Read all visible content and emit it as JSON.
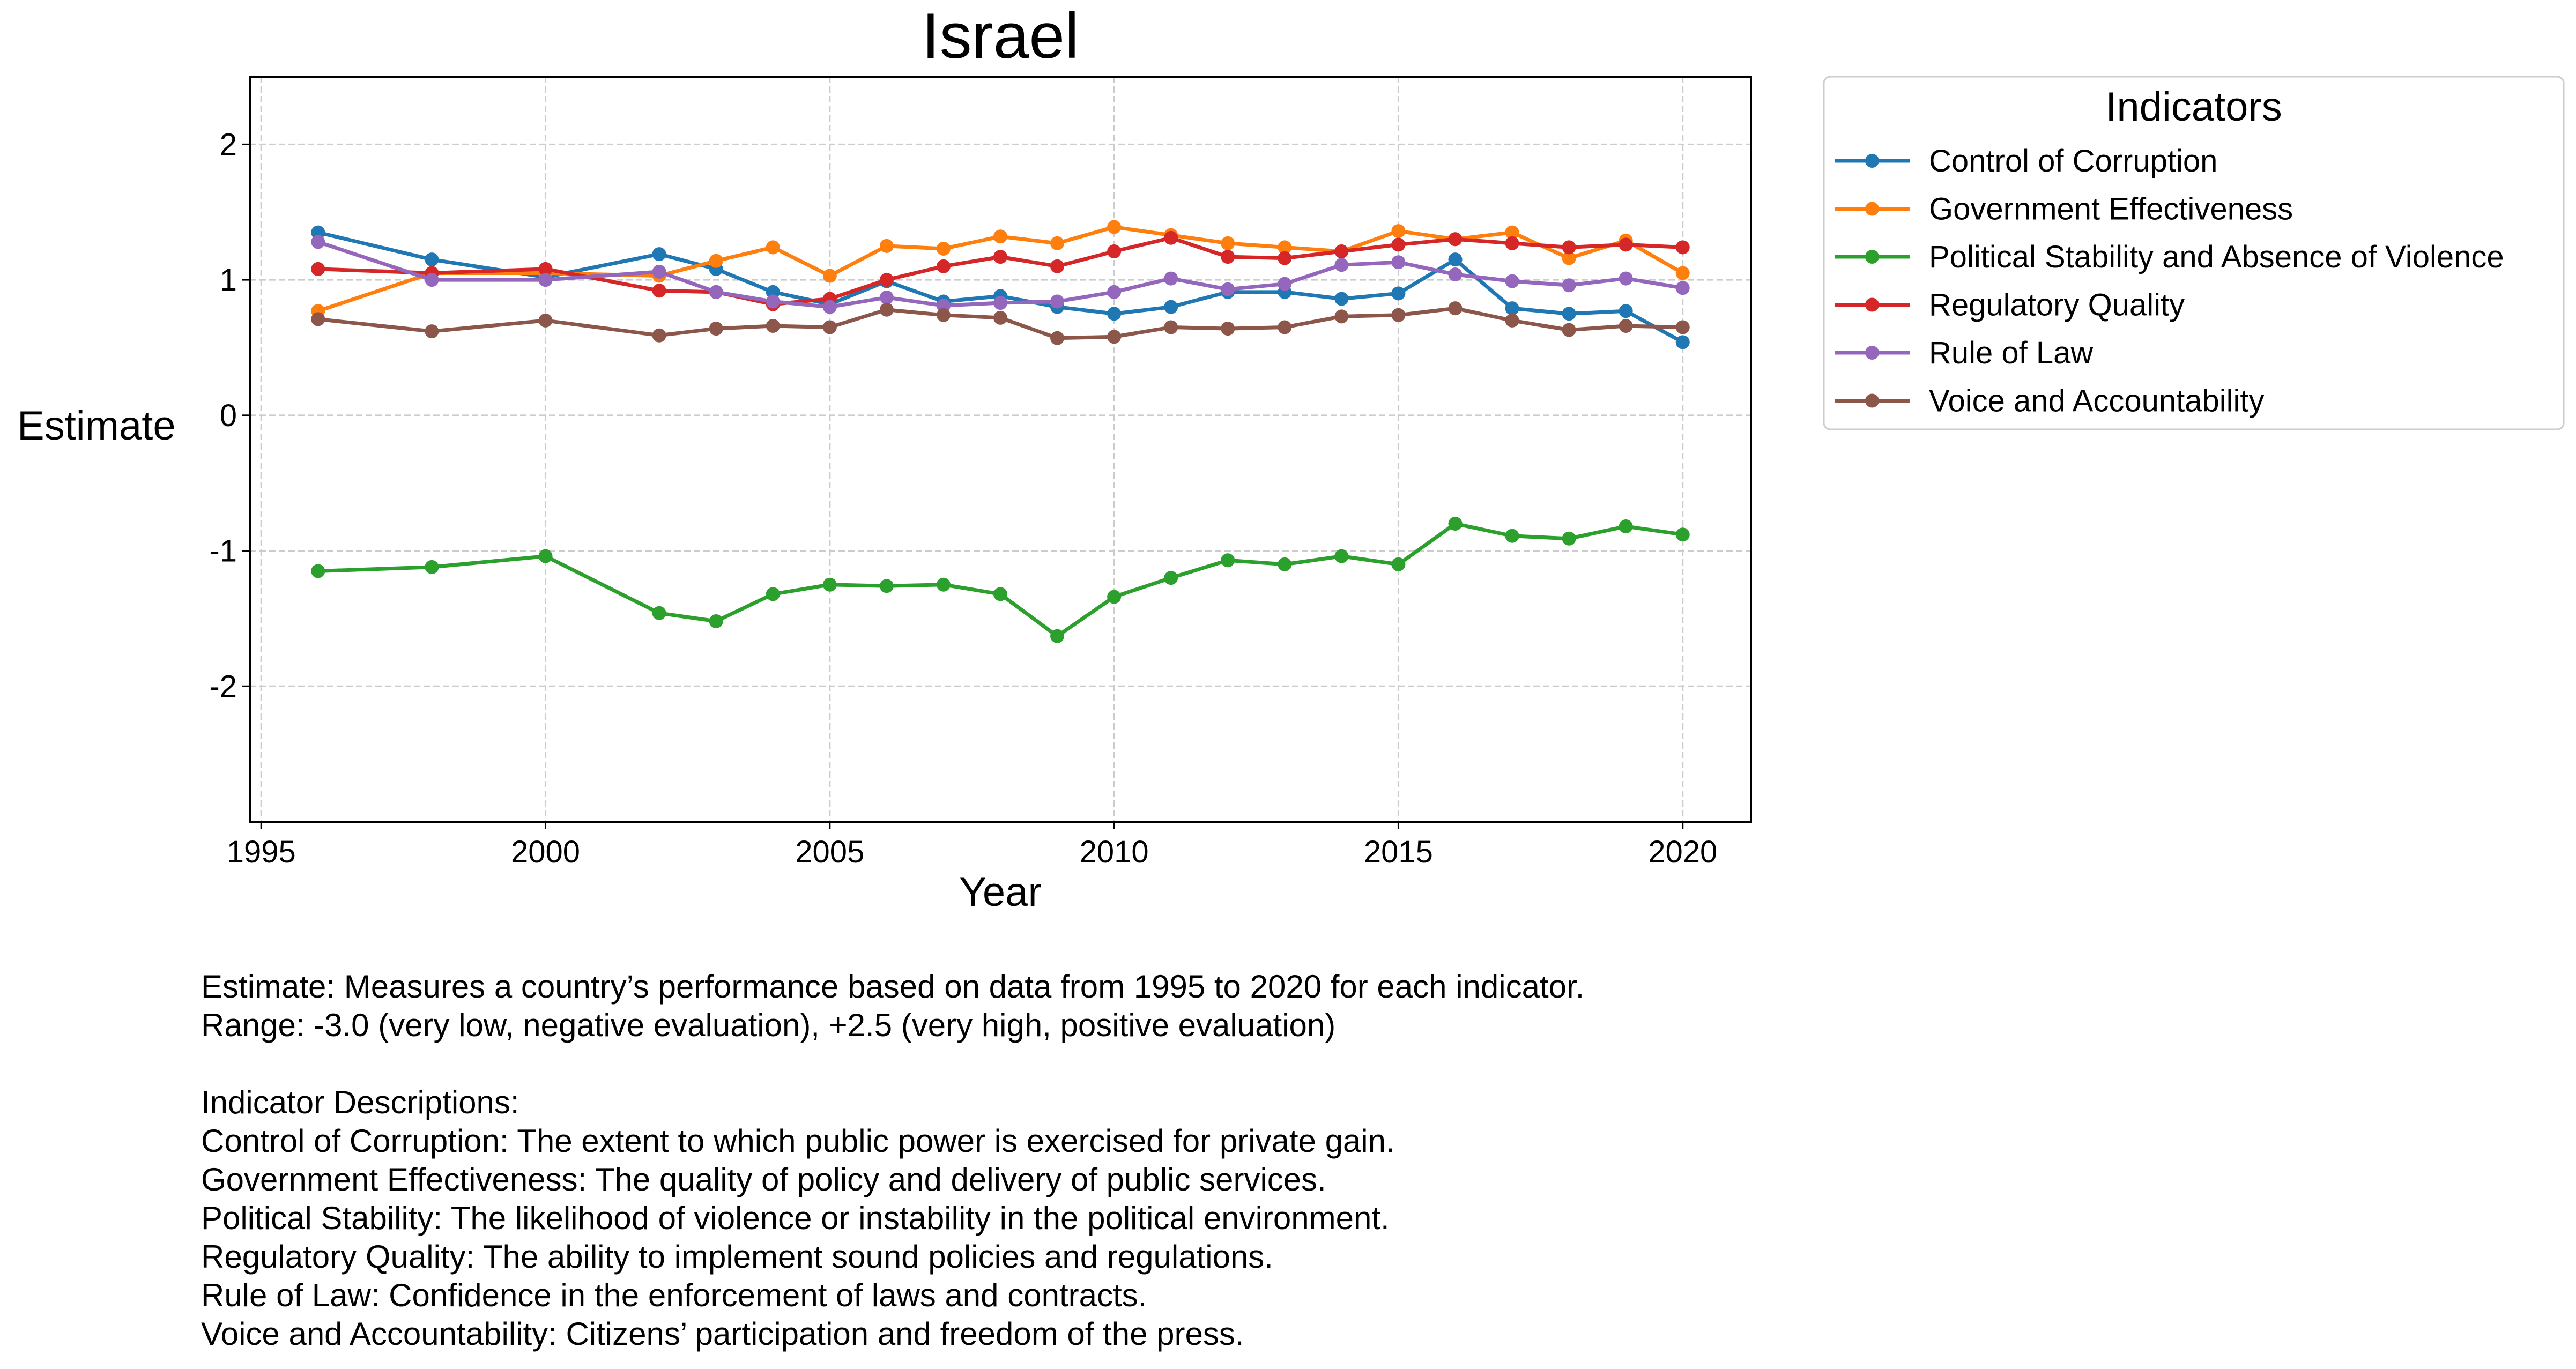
{
  "chart_data": {
    "type": "line",
    "title": "Israel",
    "xlabel": "Year",
    "ylabel": "Estimate",
    "xlim": [
      1994.8,
      2021.2
    ],
    "ylim": [
      -3.0,
      2.5
    ],
    "xticks": [
      1995,
      2000,
      2005,
      2010,
      2015,
      2020
    ],
    "xtick_labels": [
      "1995",
      "2000",
      "2005",
      "2010",
      "2015",
      "2020"
    ],
    "yticks": [
      2,
      1,
      0,
      -1,
      -2
    ],
    "ytick_labels": [
      "2",
      "1",
      "0",
      "-1",
      "-2"
    ],
    "grid": true,
    "legend_title": "Indicators",
    "legend_position": "outside right, top",
    "x": [
      1996,
      1998,
      2000,
      2002,
      2003,
      2004,
      2005,
      2006,
      2007,
      2008,
      2009,
      2010,
      2011,
      2012,
      2013,
      2014,
      2015,
      2016,
      2017,
      2018,
      2019,
      2020
    ],
    "series": [
      {
        "name": "Control of Corruption",
        "color": "#1f77b4",
        "values": [
          1.35,
          1.15,
          1.02,
          1.19,
          1.08,
          0.91,
          0.82,
          0.99,
          0.84,
          0.88,
          0.8,
          0.75,
          0.8,
          0.91,
          0.91,
          0.86,
          0.9,
          1.15,
          0.79,
          0.75,
          0.77,
          0.54
        ]
      },
      {
        "name": "Government Effectiveness",
        "color": "#ff7f0e",
        "values": [
          0.77,
          1.05,
          1.05,
          1.03,
          1.14,
          1.24,
          1.03,
          1.25,
          1.23,
          1.32,
          1.27,
          1.39,
          1.33,
          1.27,
          1.24,
          1.21,
          1.36,
          1.3,
          1.35,
          1.16,
          1.29,
          1.05
        ]
      },
      {
        "name": "Political Stability and Absence of Violence",
        "color": "#2ca02c",
        "values": [
          -1.15,
          -1.12,
          -1.04,
          -1.46,
          -1.52,
          -1.32,
          -1.25,
          -1.26,
          -1.25,
          -1.32,
          -1.63,
          -1.34,
          -1.2,
          -1.07,
          -1.1,
          -1.04,
          -1.1,
          -0.8,
          -0.89,
          -0.91,
          -0.82,
          -0.88
        ]
      },
      {
        "name": "Regulatory Quality",
        "color": "#d62728",
        "values": [
          1.08,
          1.05,
          1.08,
          0.92,
          0.91,
          0.82,
          0.86,
          1.0,
          1.1,
          1.17,
          1.1,
          1.21,
          1.31,
          1.17,
          1.16,
          1.21,
          1.26,
          1.3,
          1.27,
          1.24,
          1.26,
          1.24
        ]
      },
      {
        "name": "Rule of Law",
        "color": "#9467bd",
        "values": [
          1.28,
          1.0,
          1.0,
          1.06,
          0.91,
          0.84,
          0.8,
          0.87,
          0.81,
          0.83,
          0.84,
          0.91,
          1.01,
          0.93,
          0.97,
          1.11,
          1.13,
          1.04,
          0.99,
          0.96,
          1.01,
          0.94
        ]
      },
      {
        "name": "Voice and Accountability",
        "color": "#8c564b",
        "values": [
          0.71,
          0.62,
          0.7,
          0.59,
          0.64,
          0.66,
          0.65,
          0.78,
          0.74,
          0.72,
          0.57,
          0.58,
          0.65,
          0.64,
          0.65,
          0.73,
          0.74,
          0.79,
          0.7,
          0.63,
          0.66,
          0.65
        ]
      }
    ]
  },
  "notes": {
    "line1": "Estimate: Measures a country’s performance based on data from 1995 to 2020 for each indicator.",
    "line2": "Range: -3.0 (very low, negative evaluation), +2.5 (very high, positive evaluation)",
    "heading": "Indicator Descriptions:",
    "desc1": "Control of Corruption: The extent to which public power is exercised for private gain.",
    "desc2": "Government Effectiveness: The quality of policy and delivery of public services.",
    "desc3": "Political Stability: The likelihood of violence or instability in the political environment.",
    "desc4": "Regulatory Quality: The ability to implement sound policies and regulations.",
    "desc5": "Rule of Law: Confidence in the enforcement of laws and contracts.",
    "desc6": "Voice and Accountability: Citizens’ participation and freedom of the press."
  }
}
